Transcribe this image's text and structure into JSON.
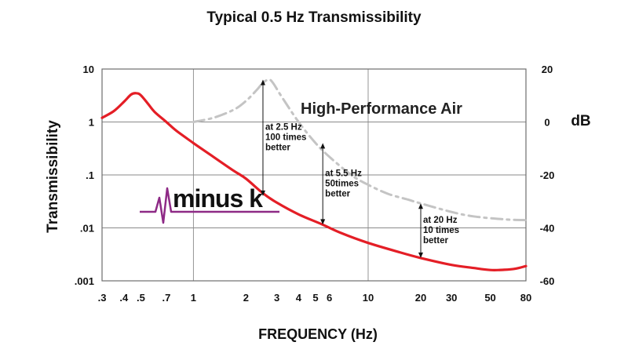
{
  "chart_data": {
    "type": "line",
    "title": "Typical 0.5 Hz Transmissibility",
    "xlabel": "FREQUENCY (Hz)",
    "ylabel": "Transmissibility",
    "y2label": "dB",
    "xscale": "log",
    "yscale": "log",
    "xlim": [
      0.3,
      80
    ],
    "ylim": [
      0.001,
      10
    ],
    "y2lim": [
      -60,
      20
    ],
    "grid": true,
    "x_ticks": [
      {
        "value": 0.3,
        "label": ".3"
      },
      {
        "value": 0.4,
        "label": ".4"
      },
      {
        "value": 0.5,
        "label": ".5"
      },
      {
        "value": 0.7,
        "label": ".7"
      },
      {
        "value": 1,
        "label": "1"
      },
      {
        "value": 2,
        "label": "2"
      },
      {
        "value": 3,
        "label": "3"
      },
      {
        "value": 4,
        "label": "4"
      },
      {
        "value": 5,
        "label": "5"
      },
      {
        "value": 6,
        "label": "6"
      },
      {
        "value": 10,
        "label": "10"
      },
      {
        "value": 20,
        "label": "20"
      },
      {
        "value": 30,
        "label": "30"
      },
      {
        "value": 50,
        "label": "50"
      },
      {
        "value": 80,
        "label": "80"
      }
    ],
    "x_gridlines": [
      1,
      10
    ],
    "y_ticks": [
      {
        "value": 10,
        "label": "10"
      },
      {
        "value": 1,
        "label": "1"
      },
      {
        "value": 0.1,
        "label": ".1"
      },
      {
        "value": 0.01,
        "label": ".01"
      },
      {
        "value": 0.001,
        "label": ".001"
      }
    ],
    "y2_ticks": [
      {
        "value": 20,
        "label": "20"
      },
      {
        "value": 0,
        "label": "0"
      },
      {
        "value": -20,
        "label": "-20"
      },
      {
        "value": -40,
        "label": "-40"
      },
      {
        "value": -60,
        "label": "-60"
      }
    ],
    "series": [
      {
        "name": "minus k",
        "color": "#e41e26",
        "style": "solid",
        "points": [
          [
            0.3,
            1.2
          ],
          [
            0.35,
            1.6
          ],
          [
            0.4,
            2.4
          ],
          [
            0.44,
            3.3
          ],
          [
            0.47,
            3.5
          ],
          [
            0.5,
            3.2
          ],
          [
            0.55,
            2.2
          ],
          [
            0.6,
            1.55
          ],
          [
            0.7,
            1.0
          ],
          [
            0.8,
            0.68
          ],
          [
            1,
            0.4
          ],
          [
            1.3,
            0.22
          ],
          [
            1.7,
            0.12
          ],
          [
            2,
            0.085
          ],
          [
            2.5,
            0.045
          ],
          [
            3,
            0.03
          ],
          [
            4,
            0.018
          ],
          [
            5.5,
            0.0115
          ],
          [
            7,
            0.008
          ],
          [
            10,
            0.0052
          ],
          [
            15,
            0.0035
          ],
          [
            20,
            0.0027
          ],
          [
            30,
            0.002
          ],
          [
            40,
            0.00175
          ],
          [
            50,
            0.0016
          ],
          [
            60,
            0.00162
          ],
          [
            70,
            0.0017
          ],
          [
            80,
            0.0019
          ]
        ]
      },
      {
        "name": "High-Performance Air",
        "color": "#c4c4c4",
        "style": "dash-dot",
        "points": [
          [
            1,
            1.0
          ],
          [
            1.3,
            1.2
          ],
          [
            1.7,
            1.7
          ],
          [
            2,
            2.5
          ],
          [
            2.3,
            4.0
          ],
          [
            2.5,
            5.5
          ],
          [
            2.7,
            6.3
          ],
          [
            2.85,
            5.5
          ],
          [
            3.2,
            3.0
          ],
          [
            4,
            1.0
          ],
          [
            5,
            0.4
          ],
          [
            6,
            0.22
          ],
          [
            8,
            0.1
          ],
          [
            10,
            0.065
          ],
          [
            13,
            0.044
          ],
          [
            17,
            0.034
          ],
          [
            20,
            0.029
          ],
          [
            30,
            0.02
          ],
          [
            40,
            0.0165
          ],
          [
            60,
            0.0145
          ],
          [
            80,
            0.014
          ]
        ]
      }
    ],
    "annotations": [
      {
        "x": 2.5,
        "y_top": 6.3,
        "y_bottom": 0.04,
        "lines": [
          "at 2.5 Hz",
          "100 times",
          "better"
        ]
      },
      {
        "x": 5.5,
        "y_top": 0.4,
        "y_bottom": 0.0115,
        "lines": [
          "at 5.5 Hz",
          "50times",
          "better"
        ]
      },
      {
        "x": 20,
        "y_top": 0.029,
        "y_bottom": 0.0027,
        "lines": [
          "at 20 Hz",
          "10 times",
          "better"
        ]
      }
    ],
    "series_labels": [
      {
        "text": "High-Performance Air",
        "placement": "upper-right"
      }
    ],
    "logo": {
      "text": "minus k",
      "color": "#8e2a86"
    }
  }
}
